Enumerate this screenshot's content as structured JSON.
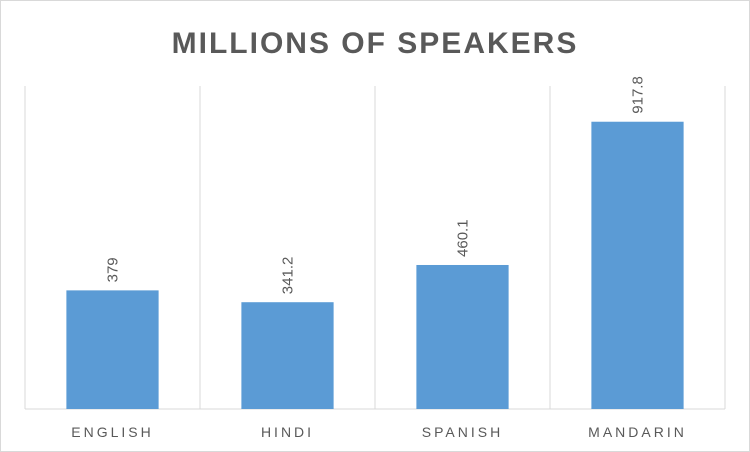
{
  "chart_data": {
    "type": "bar",
    "title": "MILLIONS OF SPEAKERS",
    "categories": [
      "ENGLISH",
      "HINDI",
      "SPANISH",
      "MANDARIN"
    ],
    "values": [
      379,
      341.2,
      460.1,
      917.8
    ],
    "data_labels": [
      "379",
      "341.2",
      "460.1",
      "917.8"
    ],
    "xlabel": "",
    "ylabel": "",
    "ylim": [
      0,
      1000
    ],
    "grid": "vertical category separators",
    "legend": "none",
    "colors": {
      "bar": "#5b9bd5",
      "grid": "#d9d9d9",
      "text": "#595959"
    }
  }
}
